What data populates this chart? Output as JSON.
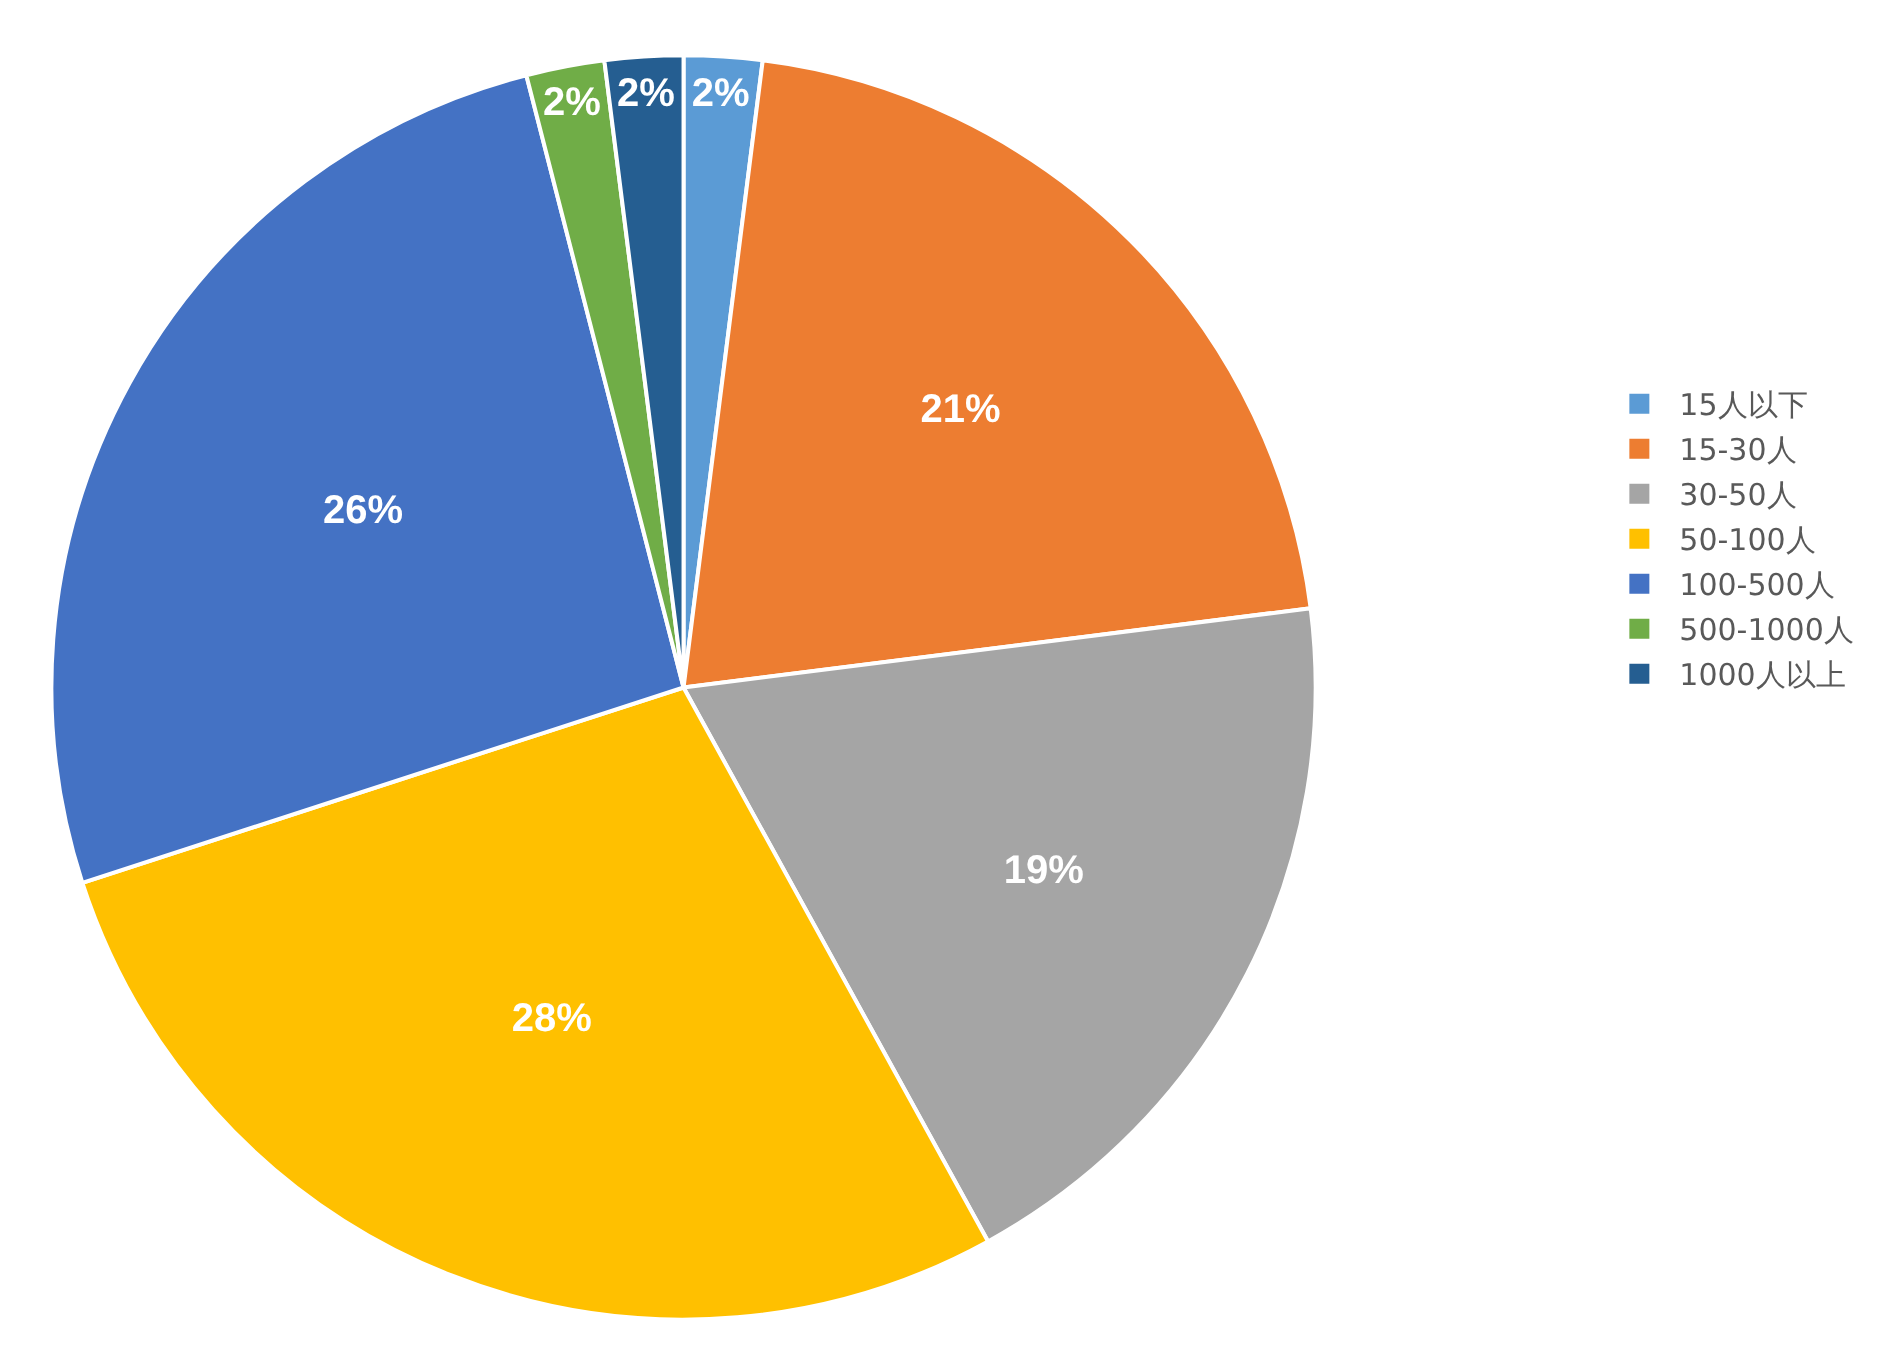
{
  "chart_data": {
    "type": "pie",
    "categories": [
      "15人以下",
      "15-30人",
      "30-50人",
      "50-100人",
      "100-500人",
      "500-1000人",
      "1000人以上"
    ],
    "values": [
      2,
      21,
      19,
      28,
      26,
      2,
      2
    ],
    "colors": [
      "#5b9bd5",
      "#ed7d31",
      "#a5a5a5",
      "#ffc000",
      "#4472c4",
      "#70ad47",
      "#255e91"
    ],
    "value_labels": [
      "2%",
      "21%",
      "19%",
      "28%",
      "26%",
      "2%",
      "2%"
    ],
    "legend": "right"
  }
}
